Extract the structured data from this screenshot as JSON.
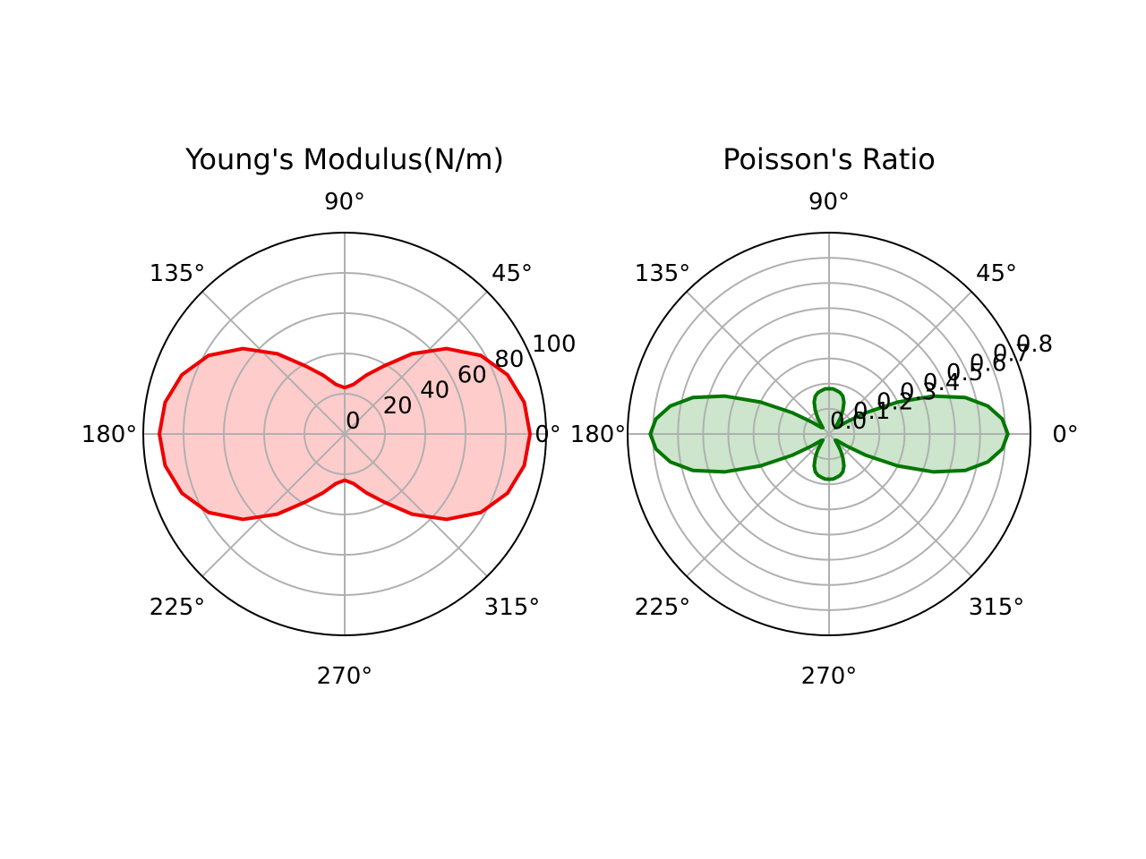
{
  "chart_data": [
    {
      "type": "polar",
      "title": "Young's Modulus(N/m)",
      "angle_tick_labels": [
        "0°",
        "45°",
        "90°",
        "135°",
        "180°",
        "225°",
        "270°",
        "315°"
      ],
      "radial_ticks": [
        0,
        20,
        40,
        60,
        80,
        100
      ],
      "radial_tick_labels": [
        "0",
        "20",
        "40",
        "60",
        "80",
        "100"
      ],
      "rlim": [
        0,
        100
      ],
      "grid": true,
      "series": [
        {
          "color": "#ee0000",
          "fill_color": "#ffcccc",
          "points": [
            [
              0,
              92
            ],
            [
              10,
              90.5
            ],
            [
              20,
              86
            ],
            [
              30,
              78
            ],
            [
              40,
              66
            ],
            [
              50,
              52
            ],
            [
              60,
              39
            ],
            [
              70,
              31
            ],
            [
              80,
              25
            ],
            [
              90,
              23
            ],
            [
              100,
              25
            ],
            [
              110,
              31
            ],
            [
              120,
              39
            ],
            [
              130,
              52
            ],
            [
              140,
              66
            ],
            [
              150,
              78
            ],
            [
              160,
              86
            ],
            [
              170,
              90.5
            ],
            [
              180,
              92
            ],
            [
              190,
              90.5
            ],
            [
              200,
              86
            ],
            [
              210,
              78
            ],
            [
              220,
              66
            ],
            [
              230,
              52
            ],
            [
              240,
              39
            ],
            [
              250,
              31
            ],
            [
              260,
              25
            ],
            [
              270,
              23
            ],
            [
              280,
              25
            ],
            [
              290,
              31
            ],
            [
              300,
              39
            ],
            [
              310,
              52
            ],
            [
              320,
              66
            ],
            [
              330,
              78
            ],
            [
              340,
              86
            ],
            [
              350,
              90.5
            ]
          ]
        }
      ]
    },
    {
      "type": "polar",
      "title": "Poisson's Ratio",
      "angle_tick_labels": [
        "0°",
        "45°",
        "90°",
        "135°",
        "180°",
        "225°",
        "270°",
        "315°"
      ],
      "radial_ticks": [
        0.0,
        0.1,
        0.2,
        0.3,
        0.4,
        0.5,
        0.6,
        0.7,
        0.8
      ],
      "radial_tick_labels": [
        "0.0",
        "0.1",
        "0.2",
        "0.3",
        "0.4",
        "0.5",
        "0.6",
        "0.7",
        "0.8"
      ],
      "rlim": [
        0,
        0.8
      ],
      "grid": true,
      "series": [
        {
          "color": "#007700",
          "fill_color": "#cce5cc",
          "points": [
            [
              0,
              0.71
            ],
            [
              5,
              0.69
            ],
            [
              10,
              0.64
            ],
            [
              15,
              0.56
            ],
            [
              20,
              0.44
            ],
            [
              25,
              0.3
            ],
            [
              30,
              0.17
            ],
            [
              35,
              0.08
            ],
            [
              40,
              0.04
            ],
            [
              45,
              0.035
            ],
            [
              50,
              0.05
            ],
            [
              55,
              0.08
            ],
            [
              60,
              0.11
            ],
            [
              65,
              0.14
            ],
            [
              70,
              0.16
            ],
            [
              75,
              0.17
            ],
            [
              80,
              0.175
            ],
            [
              85,
              0.18
            ],
            [
              90,
              0.18
            ],
            [
              95,
              0.18
            ],
            [
              100,
              0.175
            ],
            [
              105,
              0.17
            ],
            [
              110,
              0.16
            ],
            [
              115,
              0.14
            ],
            [
              120,
              0.11
            ],
            [
              125,
              0.08
            ],
            [
              130,
              0.05
            ],
            [
              135,
              0.035
            ],
            [
              140,
              0.04
            ],
            [
              145,
              0.08
            ],
            [
              150,
              0.17
            ],
            [
              155,
              0.3
            ],
            [
              160,
              0.44
            ],
            [
              165,
              0.56
            ],
            [
              170,
              0.64
            ],
            [
              175,
              0.69
            ],
            [
              180,
              0.71
            ],
            [
              185,
              0.69
            ],
            [
              190,
              0.64
            ],
            [
              195,
              0.56
            ],
            [
              200,
              0.44
            ],
            [
              205,
              0.3
            ],
            [
              210,
              0.17
            ],
            [
              215,
              0.08
            ],
            [
              220,
              0.04
            ],
            [
              225,
              0.035
            ],
            [
              230,
              0.05
            ],
            [
              235,
              0.08
            ],
            [
              240,
              0.11
            ],
            [
              245,
              0.14
            ],
            [
              250,
              0.16
            ],
            [
              255,
              0.17
            ],
            [
              260,
              0.175
            ],
            [
              265,
              0.18
            ],
            [
              270,
              0.18
            ],
            [
              275,
              0.18
            ],
            [
              280,
              0.175
            ],
            [
              285,
              0.17
            ],
            [
              290,
              0.16
            ],
            [
              295,
              0.14
            ],
            [
              300,
              0.11
            ],
            [
              305,
              0.08
            ],
            [
              310,
              0.05
            ],
            [
              315,
              0.035
            ],
            [
              320,
              0.04
            ],
            [
              325,
              0.08
            ],
            [
              330,
              0.17
            ],
            [
              335,
              0.3
            ],
            [
              340,
              0.44
            ],
            [
              345,
              0.56
            ],
            [
              350,
              0.64
            ],
            [
              355,
              0.69
            ]
          ]
        }
      ]
    }
  ]
}
